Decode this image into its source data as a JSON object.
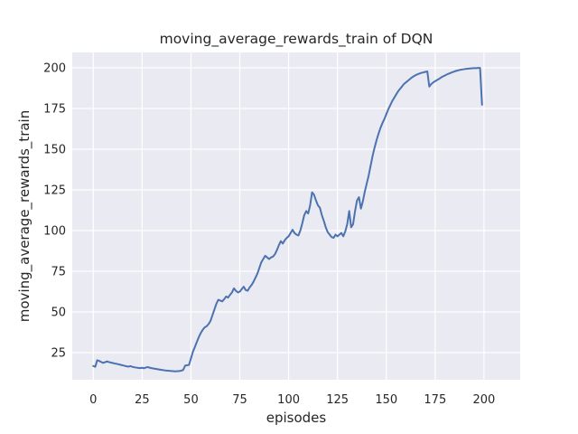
{
  "chart_data": {
    "type": "line",
    "title": "moving_average_rewards_train of DQN",
    "xlabel": "episodes",
    "ylabel": "moving_average_rewards_train",
    "x_ticks": [
      0,
      25,
      50,
      75,
      100,
      125,
      150,
      175,
      200
    ],
    "y_ticks": [
      25,
      50,
      75,
      100,
      125,
      150,
      175,
      200
    ],
    "xlim": [
      -11,
      218
    ],
    "ylim": [
      4,
      210
    ],
    "grid": "on",
    "legend": "none",
    "style": {
      "plot_background": "#eaeaf2",
      "grid_color": "#ffffff",
      "line_color": "#4c72b0",
      "text_color": "#262626",
      "figure_background": "#ffffff"
    },
    "series": [
      {
        "name": "moving_average_rewards_train",
        "x0": 0,
        "dx": 1,
        "y": [
          16.8,
          16.3,
          20.3,
          19.9,
          19.3,
          18.7,
          19.1,
          19.6,
          19.2,
          18.9,
          18.6,
          18.3,
          18.1,
          17.8,
          17.5,
          17.2,
          16.9,
          16.6,
          16.4,
          16.7,
          16.3,
          16.0,
          15.8,
          15.6,
          15.5,
          15.7,
          15.4,
          15.9,
          16.1,
          15.7,
          15.4,
          15.2,
          15.0,
          14.8,
          14.6,
          14.4,
          14.2,
          14.0,
          13.9,
          13.8,
          13.7,
          13.6,
          13.5,
          13.6,
          13.7,
          13.9,
          14.3,
          17.0,
          17.2,
          17.5,
          21.5,
          25.5,
          28.5,
          31.5,
          34.5,
          37.0,
          39.0,
          40.5,
          41.2,
          42.5,
          44.5,
          48.0,
          51.5,
          55.0,
          57.5,
          57.0,
          56.5,
          57.8,
          59.5,
          58.8,
          60.5,
          62.0,
          64.5,
          63.0,
          62.0,
          62.5,
          64.0,
          65.5,
          63.5,
          63.0,
          65.0,
          66.5,
          68.5,
          71.0,
          73.5,
          77.0,
          80.5,
          82.5,
          84.5,
          83.5,
          82.5,
          83.5,
          84.0,
          85.5,
          88.0,
          91.0,
          93.5,
          92.0,
          94.0,
          95.5,
          96.5,
          98.5,
          100.5,
          98.5,
          97.5,
          97.0,
          100.0,
          104.5,
          109.5,
          112.0,
          110.5,
          115.5,
          123.5,
          122.0,
          118.5,
          115.5,
          114.0,
          109.5,
          106.0,
          102.0,
          99.0,
          97.5,
          96.0,
          95.5,
          97.5,
          96.5,
          97.5,
          98.5,
          96.5,
          99.5,
          104.0,
          112.0,
          102.0,
          104.0,
          112.0,
          118.5,
          120.5,
          113.5,
          118.0,
          124.0,
          129.0,
          134.0,
          140.0,
          146.0,
          151.0,
          155.5,
          159.5,
          163.0,
          166.0,
          168.5,
          171.5,
          174.5,
          177.0,
          179.5,
          181.5,
          183.5,
          185.5,
          187.0,
          188.5,
          190.0,
          191.0,
          192.0,
          193.0,
          194.0,
          194.8,
          195.5,
          196.0,
          196.5,
          196.9,
          197.2,
          197.5,
          197.8,
          188.5,
          190.0,
          191.0,
          191.8,
          192.5,
          193.2,
          194.0,
          194.7,
          195.3,
          195.9,
          196.4,
          196.9,
          197.4,
          197.8,
          198.2,
          198.5,
          198.8,
          199.0,
          199.2,
          199.4,
          199.5,
          199.6,
          199.7,
          199.8,
          199.8,
          199.9,
          199.9,
          177.3
        ]
      }
    ]
  }
}
